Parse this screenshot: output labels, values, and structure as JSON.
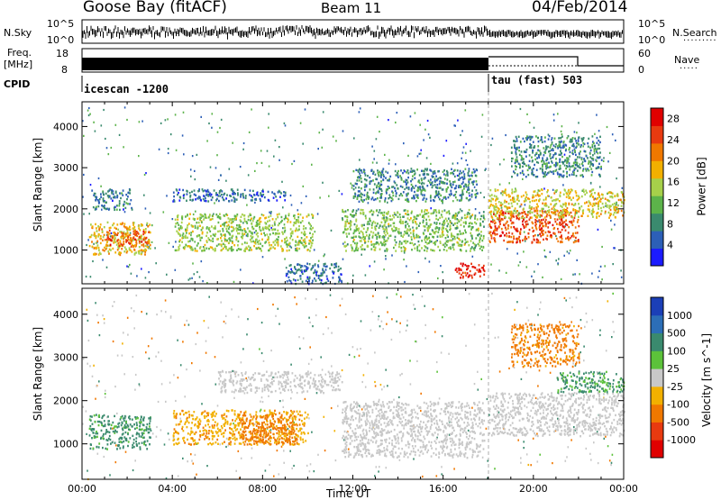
{
  "header": {
    "station": "Goose Bay (fitACF)",
    "beam": "Beam 11",
    "date": "04/Feb/2014"
  },
  "noise_panel": {
    "left_label": "N.Sky",
    "right_label": "N.Search",
    "left_ticks": [
      "10^5",
      "10^0"
    ],
    "right_ticks": [
      "10^5",
      "10^0"
    ]
  },
  "freq_panel": {
    "left_label_top": "Freq.",
    "left_label_bottom": "[MHz]",
    "right_label": "Nave",
    "left_ticks": [
      "18",
      "8"
    ],
    "right_ticks": [
      "60",
      "0"
    ]
  },
  "cpid_panel": {
    "label": "CPID",
    "programs": [
      {
        "name": "icescan -1200",
        "start_hour": 0.0
      },
      {
        "name": "tau (fast) 503",
        "start_hour": 18.0
      }
    ]
  },
  "chart_data": [
    {
      "type": "heatmap",
      "title": "",
      "xlabel": "Time UT",
      "ylabel": "Slant Range [km]",
      "xlim": [
        0,
        24
      ],
      "ylim": [
        180,
        4600
      ],
      "x_tick_labels": [
        "00:00",
        "04:00",
        "08:00",
        "12:00",
        "16:00",
        "20:00",
        "00:00"
      ],
      "y_tick_labels": [
        "1000",
        "2000",
        "3000",
        "4000"
      ],
      "colorbar": {
        "label": "Power [dB]",
        "ticks": [
          "4",
          "8",
          "12",
          "16",
          "20",
          "24",
          "28"
        ],
        "range": [
          0,
          30
        ],
        "colors": [
          "#1b1bff",
          "#2c5fb7",
          "#3a8a6e",
          "#5cb34a",
          "#a6d04a",
          "#f2b000",
          "#f07800",
          "#e83a10",
          "#e00000"
        ]
      },
      "regions": [
        {
          "t": [
            0.3,
            3.0
          ],
          "r": [
            900,
            1700
          ],
          "value": 18
        },
        {
          "t": [
            1.0,
            3.0
          ],
          "r": [
            1100,
            1500
          ],
          "value": 23
        },
        {
          "t": [
            0.4,
            2.2
          ],
          "r": [
            2000,
            2500
          ],
          "value": 7
        },
        {
          "t": [
            4.1,
            10.2
          ],
          "r": [
            1000,
            1900
          ],
          "value": 14
        },
        {
          "t": [
            4.0,
            9.0
          ],
          "r": [
            2200,
            2500
          ],
          "value": 6
        },
        {
          "t": [
            9.0,
            11.5
          ],
          "r": [
            200,
            700
          ],
          "value": 6
        },
        {
          "t": [
            11.5,
            17.8
          ],
          "r": [
            1000,
            2000
          ],
          "value": 13
        },
        {
          "t": [
            12.0,
            17.5
          ],
          "r": [
            2200,
            3000
          ],
          "value": 8
        },
        {
          "t": [
            16.5,
            17.8
          ],
          "r": [
            350,
            700
          ],
          "value": 27
        },
        {
          "t": [
            18.0,
            22.0
          ],
          "r": [
            1200,
            2000
          ],
          "value": 24
        },
        {
          "t": [
            18.0,
            24.0
          ],
          "r": [
            1800,
            2500
          ],
          "value": 17
        },
        {
          "t": [
            19.0,
            23.0
          ],
          "r": [
            2800,
            3800
          ],
          "value": 8
        }
      ]
    },
    {
      "type": "heatmap",
      "title": "",
      "xlabel": "Time UT",
      "ylabel": "Slant Range [km]",
      "xlim": [
        0,
        24
      ],
      "ylim": [
        180,
        4600
      ],
      "x_tick_labels": [
        "00:00",
        "04:00",
        "08:00",
        "12:00",
        "16:00",
        "20:00",
        "00:00"
      ],
      "y_tick_labels": [
        "1000",
        "2000",
        "3000",
        "4000"
      ],
      "colorbar": {
        "label": "Velocity [m s^-1]",
        "ticks": [
          "1000",
          "500",
          "100",
          "25",
          "-25",
          "-100",
          "-500",
          "-1000"
        ],
        "colors": [
          "#1b3fb7",
          "#2c6eb7",
          "#3a8a6e",
          "#5cc23a",
          "#c8c8c8",
          "#f2b000",
          "#f07800",
          "#e83a10",
          "#e00000"
        ]
      },
      "regions": [
        {
          "t": [
            0.3,
            3.0
          ],
          "r": [
            900,
            1700
          ],
          "value": 150
        },
        {
          "t": [
            4.0,
            10.0
          ],
          "r": [
            1000,
            1800
          ],
          "value": -80
        },
        {
          "t": [
            7.0,
            9.5
          ],
          "r": [
            1000,
            1700
          ],
          "value": -300
        },
        {
          "t": [
            6.0,
            11.5
          ],
          "r": [
            2200,
            2700
          ],
          "value": 0
        },
        {
          "t": [
            11.5,
            17.8
          ],
          "r": [
            700,
            2000
          ],
          "value": 0
        },
        {
          "t": [
            18.0,
            24.0
          ],
          "r": [
            1200,
            2200
          ],
          "value": 0
        },
        {
          "t": [
            21.0,
            24.0
          ],
          "r": [
            2200,
            2700
          ],
          "value": 120
        },
        {
          "t": [
            19.0,
            22.0
          ],
          "r": [
            2800,
            3800
          ],
          "value": -150
        }
      ]
    }
  ]
}
